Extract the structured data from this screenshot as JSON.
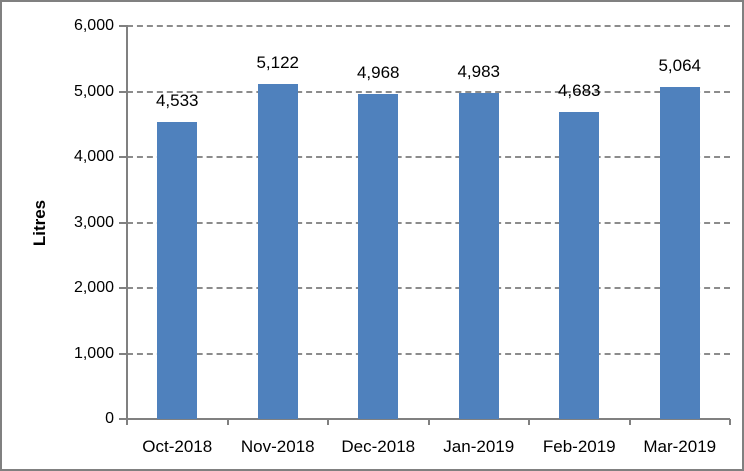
{
  "chart_data": {
    "type": "bar",
    "title": "",
    "categories": [
      "Oct-2018",
      "Nov-2018",
      "Dec-2018",
      "Jan-2019",
      "Feb-2019",
      "Mar-2019"
    ],
    "values": [
      4533,
      5122,
      4968,
      4983,
      4683,
      5064
    ],
    "value_labels": [
      "4,533",
      "5,122",
      "4,968",
      "4,983",
      "4,683",
      "5,064"
    ],
    "xlabel": "",
    "ylabel": "Litres",
    "ylim": [
      0,
      6000
    ],
    "ytick_interval": 1000,
    "ytick_labels": [
      "0",
      "1,000",
      "2,000",
      "3,000",
      "4,000",
      "5,000",
      "6,000"
    ],
    "grid": "horizontal-dashed",
    "legend": "none",
    "colors": {
      "bar": "#4f81bd",
      "gridline": "#8c8c8c",
      "axis": "#808080",
      "border": "#808080",
      "text": "#000000"
    }
  }
}
